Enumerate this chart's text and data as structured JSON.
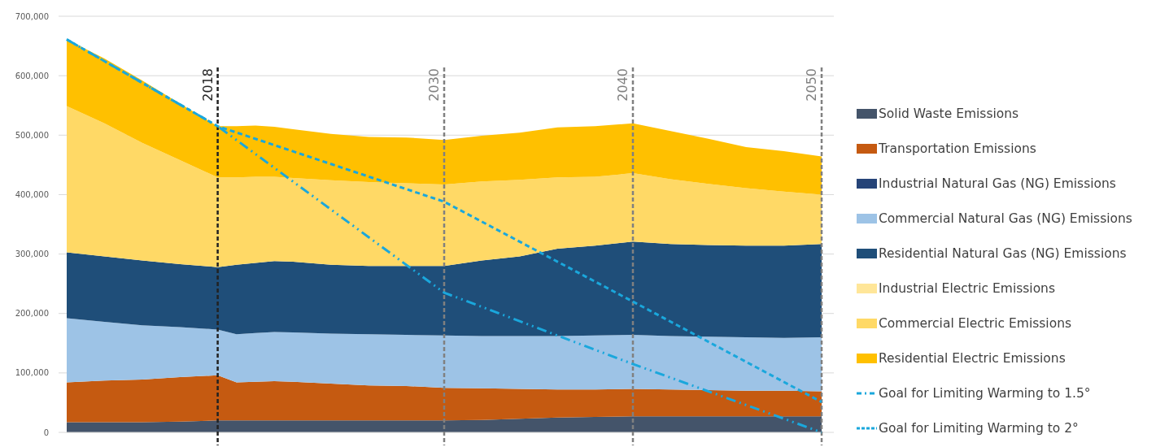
{
  "chart_data": {
    "type": "area",
    "stacked": true,
    "x": [
      2010,
      2012,
      2014,
      2016,
      2018,
      2019,
      2020,
      2021,
      2022,
      2024,
      2026,
      2028,
      2030,
      2032,
      2034,
      2036,
      2038,
      2040,
      2042,
      2044,
      2046,
      2048,
      2050
    ],
    "xlim": [
      2010,
      2050
    ],
    "ylim": [
      0,
      700000
    ],
    "yticks": [
      {
        "value": 0,
        "label": "0"
      },
      {
        "value": 100000,
        "label": "100,000"
      },
      {
        "value": 200000,
        "label": "200,000"
      },
      {
        "value": 300000,
        "label": "300,000"
      },
      {
        "value": 400000,
        "label": "400,000"
      },
      {
        "value": 500000,
        "label": "500,000"
      },
      {
        "value": 600000,
        "label": "600,000"
      },
      {
        "value": 700000,
        "label": "700,000"
      }
    ],
    "tick_labels": "y",
    "grid": "y",
    "legend": "right",
    "series": [
      {
        "name": "Solid Waste Emissions",
        "color": "#44546a",
        "values": [
          17000,
          17000,
          17000,
          18000,
          20000,
          20000,
          20000,
          20000,
          20000,
          20000,
          20000,
          20000,
          20000,
          21000,
          23000,
          25000,
          26000,
          27000,
          27000,
          27000,
          27000,
          27000,
          27000
        ]
      },
      {
        "name": "Transportation Emissions",
        "color": "#c55a11",
        "values": [
          67000,
          70000,
          72000,
          75000,
          76000,
          64000,
          65000,
          66000,
          65000,
          62000,
          59000,
          58000,
          55000,
          53000,
          50000,
          47000,
          46000,
          46000,
          45000,
          44000,
          43000,
          43000,
          42000
        ]
      },
      {
        "name": "Industrial Natural Gas (NG) Emissions",
        "color": "#264478",
        "values": [
          null,
          null,
          null,
          null,
          null,
          null,
          null,
          null,
          null,
          null,
          null,
          null,
          null,
          null,
          null,
          null,
          null,
          null,
          null,
          null,
          null,
          null,
          null
        ]
      },
      {
        "name": "Commercial Natural Gas (NG) Emissions",
        "color": "#9dc3e6",
        "values": [
          108000,
          99000,
          91000,
          84000,
          77000,
          81000,
          82000,
          83000,
          83000,
          84000,
          86000,
          86000,
          88000,
          88000,
          89000,
          90000,
          91000,
          91000,
          90000,
          90000,
          90000,
          89000,
          91000
        ]
      },
      {
        "name": "Residential Natural Gas (NG) Emissions",
        "color": "#1f4e79",
        "values": [
          111000,
          110000,
          109000,
          106000,
          105000,
          117000,
          118000,
          119000,
          119000,
          116000,
          115000,
          116000,
          117000,
          127000,
          134000,
          147000,
          151000,
          157000,
          155000,
          154000,
          154000,
          155000,
          157000
        ]
      },
      {
        "name": "Industrial Electric Emissions",
        "color": "#ffe699",
        "values": [
          null,
          null,
          null,
          null,
          null,
          null,
          null,
          null,
          null,
          null,
          null,
          null,
          null,
          null,
          null,
          null,
          null,
          null,
          null,
          null,
          null,
          null,
          null
        ]
      },
      {
        "name": "Commercial Electric Emissions",
        "color": "#ffd966",
        "values": [
          246000,
          224000,
          198000,
          175000,
          151000,
          147000,
          145000,
          142000,
          141000,
          142000,
          141000,
          139000,
          137000,
          133000,
          129000,
          120000,
          116000,
          115000,
          109000,
          103000,
          97000,
          91000,
          83000
        ]
      },
      {
        "name": "Residential Electric Emissions",
        "color": "#ffc000",
        "values": [
          112000,
          109000,
          105000,
          95000,
          86000,
          86000,
          86000,
          84000,
          82000,
          78000,
          76000,
          77000,
          75000,
          77000,
          79000,
          84000,
          85000,
          84000,
          81000,
          76000,
          69000,
          68000,
          64000
        ]
      },
      {
        "name": "Goal for Limiting Warming to 1.5°",
        "type": "line",
        "line_style": "dotted",
        "color": "#1aa7dc",
        "x": [
          2010,
          2018,
          2030,
          2040,
          2050
        ],
        "values": [
          661000,
          515000,
          235000,
          115000,
          0
        ]
      },
      {
        "name": "Goal for Limiting Warming to 2°",
        "type": "line",
        "line_style": "dashed",
        "color": "#1aa7dc",
        "x": [
          2010,
          2018,
          2030,
          2040,
          2050
        ],
        "values": [
          661000,
          515000,
          388000,
          220000,
          51000
        ]
      }
    ],
    "ref_lines": [
      {
        "axis": "x",
        "value": 2018,
        "label": "2018",
        "color": "#222222",
        "line_style": "dashed"
      },
      {
        "axis": "x",
        "value": 2030,
        "label": "2030",
        "color": "#808080",
        "line_style": "dashed"
      },
      {
        "axis": "x",
        "value": 2040,
        "label": "2040",
        "color": "#808080",
        "line_style": "dashed"
      },
      {
        "axis": "x",
        "value": 2050,
        "label": "2050",
        "color": "#808080",
        "line_style": "dashed"
      }
    ]
  }
}
